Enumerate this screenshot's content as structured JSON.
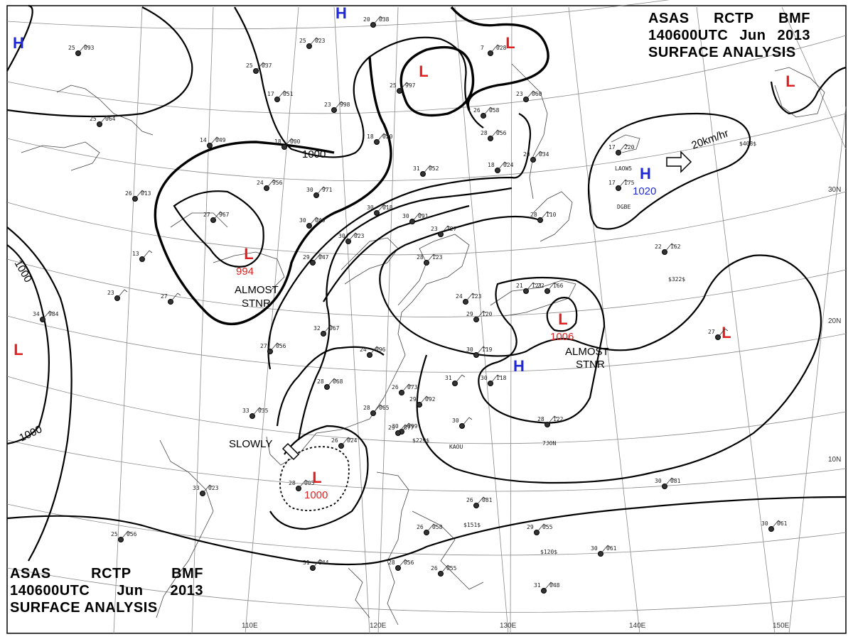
{
  "header": {
    "line1": [
      "ASAS",
      "RCTP",
      "BMF"
    ],
    "line2": [
      "140600UTC",
      "Jun",
      "2013"
    ],
    "line3": "SURFACE ANALYSIS"
  },
  "colors": {
    "high": "#1f2ad6",
    "low": "#e02020",
    "isobar": "#000000",
    "grid": "#8a8a8a"
  },
  "longitude_labels": [
    "110E",
    "120E",
    "130E",
    "140E",
    "150E"
  ],
  "latitude_labels": [
    "30N",
    "20N",
    "10N"
  ],
  "pressure_systems": [
    {
      "type": "H",
      "label": "H",
      "value": ""
    },
    {
      "type": "H",
      "label": "H",
      "value": ""
    },
    {
      "type": "L",
      "label": "L",
      "value": ""
    },
    {
      "type": "L",
      "label": "L",
      "value": ""
    },
    {
      "type": "L",
      "label": "L",
      "value": "994"
    },
    {
      "type": "H",
      "label": "H",
      "value": "1020"
    },
    {
      "type": "L",
      "label": "L",
      "value": ""
    },
    {
      "type": "L",
      "label": "L",
      "value": "1006"
    },
    {
      "type": "H",
      "label": "H",
      "value": ""
    },
    {
      "type": "L",
      "label": "L",
      "value": ""
    },
    {
      "type": "L",
      "label": "L",
      "value": ""
    },
    {
      "type": "L",
      "label": "L",
      "value": "1000"
    }
  ],
  "isobar_labels": [
    "1000",
    "1000",
    "1000"
  ],
  "annotations": {
    "almost_stnr_1": [
      "ALMOST",
      "STNR"
    ],
    "almost_stnr_2": [
      "ALMOST",
      "STNR"
    ],
    "slowly": "SLOWLY",
    "motion": "20km/hr"
  },
  "stations": [
    {
      "t": "25",
      "p": "093"
    },
    {
      "t": "25",
      "p": "023"
    },
    {
      "t": "20",
      "p": "038"
    },
    {
      "t": "7",
      "p": "028"
    },
    {
      "t": "25",
      "p": "037"
    },
    {
      "t": "17",
      "p": "051"
    },
    {
      "t": "25",
      "p": "997"
    },
    {
      "t": "23",
      "p": "998"
    },
    {
      "t": "26",
      "p": "058"
    },
    {
      "t": "23",
      "p": "060"
    },
    {
      "t": "25",
      "p": "064"
    },
    {
      "t": "14",
      "p": "049"
    },
    {
      "t": "18",
      "p": "000"
    },
    {
      "t": "18",
      "p": "020"
    },
    {
      "t": "28",
      "p": "056"
    },
    {
      "t": "31",
      "p": "052"
    },
    {
      "t": "18",
      "p": "024"
    },
    {
      "t": "20",
      "p": "034"
    },
    {
      "t": "17",
      "p": "220"
    },
    {
      "t": "17",
      "p": "175"
    },
    {
      "t": "24",
      "p": "956"
    },
    {
      "t": "30",
      "p": "971"
    },
    {
      "t": "27",
      "p": "967"
    },
    {
      "t": "26",
      "p": "013"
    },
    {
      "t": "30",
      "p": "018"
    },
    {
      "t": "30",
      "p": "091"
    },
    {
      "t": "30",
      "p": "040"
    },
    {
      "t": "30",
      "p": "023"
    },
    {
      "t": "23",
      "p": "127"
    },
    {
      "t": "28",
      "p": "110"
    },
    {
      "t": "13",
      "p": ""
    },
    {
      "t": "29",
      "p": "047"
    },
    {
      "t": "22",
      "p": "162"
    },
    {
      "t": "28",
      "p": "123"
    },
    {
      "t": "21",
      "p": "121"
    },
    {
      "t": "22",
      "p": "166"
    },
    {
      "t": "24",
      "p": "123"
    },
    {
      "t": "29",
      "p": "120"
    },
    {
      "t": "23",
      "p": ""
    },
    {
      "t": "27",
      "p": ""
    },
    {
      "t": "34",
      "p": "984"
    },
    {
      "t": "32",
      "p": "067"
    },
    {
      "t": "27",
      "p": "056"
    },
    {
      "t": "24",
      "p": "096"
    },
    {
      "t": "30",
      "p": "119"
    },
    {
      "t": "27",
      "p": ""
    },
    {
      "t": "28",
      "p": "068"
    },
    {
      "t": "26",
      "p": "073"
    },
    {
      "t": "31",
      "p": ""
    },
    {
      "t": "30",
      "p": "118"
    },
    {
      "t": "29",
      "p": "092"
    },
    {
      "t": "28",
      "p": "065"
    },
    {
      "t": "30",
      "p": ""
    },
    {
      "t": "30",
      "p": "099"
    },
    {
      "t": "28",
      "p": "122"
    },
    {
      "t": "33",
      "p": "035"
    },
    {
      "t": "26",
      "p": "024"
    },
    {
      "t": "29",
      "p": "077"
    },
    {
      "t": "28",
      "p": "005"
    },
    {
      "t": "33",
      "p": "023"
    },
    {
      "t": "30",
      "p": "081"
    },
    {
      "t": "26",
      "p": "081"
    },
    {
      "t": "25",
      "p": "056"
    },
    {
      "t": "29",
      "p": "055"
    },
    {
      "t": "30",
      "p": "061"
    },
    {
      "t": "30",
      "p": "061"
    },
    {
      "t": "31",
      "p": "044"
    },
    {
      "t": "26",
      "p": "058"
    },
    {
      "t": "28",
      "p": "056"
    },
    {
      "t": "26",
      "p": "055"
    },
    {
      "t": "31",
      "p": "048"
    }
  ],
  "station_ids": [
    "LAOW5",
    "DGBE",
    "KAOU",
    "7JON"
  ],
  "side_values": [
    "$408$",
    "$322$",
    "$229$",
    "$151$",
    "$120$"
  ]
}
